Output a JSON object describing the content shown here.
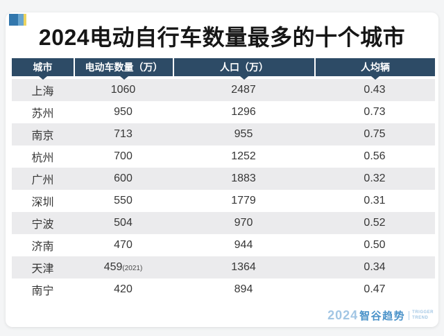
{
  "title": "2024电动自行车数量最多的十个城市",
  "table": {
    "columns": [
      "城市",
      "电动车数量（万）",
      "人口（万）",
      "人均辆"
    ],
    "rows": [
      {
        "city": "上海",
        "bikes": "1060",
        "bikes_note": "",
        "pop": "2487",
        "per_capita": "0.43"
      },
      {
        "city": "苏州",
        "bikes": "950",
        "bikes_note": "",
        "pop": "1296",
        "per_capita": "0.73"
      },
      {
        "city": "南京",
        "bikes": "713",
        "bikes_note": "",
        "pop": "955",
        "per_capita": "0.75"
      },
      {
        "city": "杭州",
        "bikes": "700",
        "bikes_note": "",
        "pop": "1252",
        "per_capita": "0.56"
      },
      {
        "city": "广州",
        "bikes": "600",
        "bikes_note": "",
        "pop": "1883",
        "per_capita": "0.32"
      },
      {
        "city": "深圳",
        "bikes": "550",
        "bikes_note": "",
        "pop": "1779",
        "per_capita": "0.31"
      },
      {
        "city": "宁波",
        "bikes": "504",
        "bikes_note": "",
        "pop": "970",
        "per_capita": "0.52"
      },
      {
        "city": "济南",
        "bikes": "470",
        "bikes_note": "",
        "pop": "944",
        "per_capita": "0.50"
      },
      {
        "city": "天津",
        "bikes": "459",
        "bikes_note": "(2021)",
        "pop": "1364",
        "per_capita": "0.34"
      },
      {
        "city": "南宁",
        "bikes": "420",
        "bikes_note": "",
        "pop": "894",
        "per_capita": "0.47"
      }
    ]
  },
  "logo": {
    "year": "2024",
    "brand": "智谷趋势",
    "tagline_line1": "TRIGGER",
    "tagline_line2": "TREND"
  },
  "colors": {
    "header_bg": "#2d4b66",
    "stripe_row": "#ebebed",
    "card_bg": "#ffffff",
    "page_bg": "#f4f5f6",
    "title_text": "#161616",
    "body_text": "#363636",
    "logo_light_blue": "#a2c6e4",
    "logo_blue": "#4a92c9",
    "icon_dark_blue": "#3277ad",
    "icon_light_blue": "#68a5cf",
    "icon_yellow": "#ecd45f"
  },
  "chart_data": {
    "type": "table",
    "title": "2024电动自行车数量最多的十个城市",
    "columns": [
      "城市",
      "电动车数量（万）",
      "人口（万）",
      "人均辆"
    ],
    "rows": [
      [
        "上海",
        "1060",
        "2487",
        "0.43"
      ],
      [
        "苏州",
        "950",
        "1296",
        "0.73"
      ],
      [
        "南京",
        "713",
        "955",
        "0.75"
      ],
      [
        "杭州",
        "700",
        "1252",
        "0.56"
      ],
      [
        "广州",
        "600",
        "1883",
        "0.32"
      ],
      [
        "深圳",
        "550",
        "1779",
        "0.31"
      ],
      [
        "宁波",
        "504",
        "970",
        "0.52"
      ],
      [
        "济南",
        "470",
        "944",
        "0.50"
      ],
      [
        "天津",
        "459(2021)",
        "1364",
        "0.34"
      ],
      [
        "南宁",
        "420",
        "894",
        "0.47"
      ]
    ],
    "notes": "天津 value is from 2021; striped rows; source logo 2024智谷趋势 TRIGGER TREND"
  }
}
